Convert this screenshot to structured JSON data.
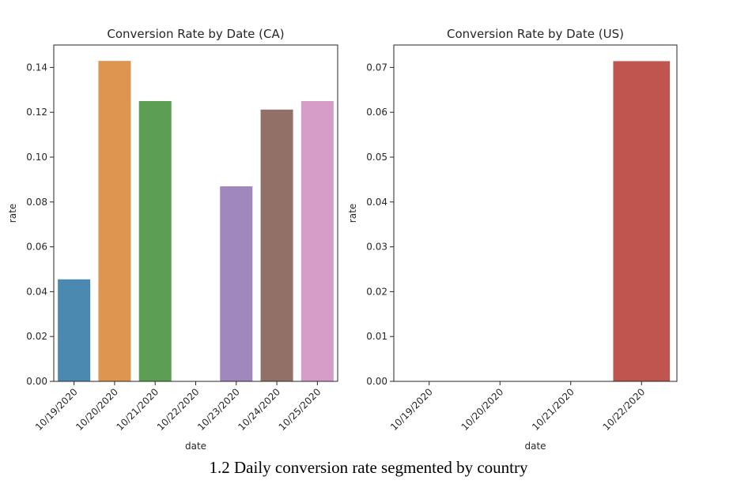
{
  "chart_data": [
    {
      "type": "bar",
      "title": "Conversion Rate by Date (CA)",
      "xlabel": "date",
      "ylabel": "rate",
      "categories": [
        "10/19/2020",
        "10/20/2020",
        "10/21/2020",
        "10/22/2020",
        "10/23/2020",
        "10/24/2020",
        "10/25/2020"
      ],
      "values": [
        0.0455,
        0.1429,
        0.125,
        0.0,
        0.087,
        0.1212,
        0.125
      ],
      "colors": [
        "#4c89b0",
        "#dd9550",
        "#5c9e54",
        "#c44e52",
        "#a087bc",
        "#937067",
        "#d59dc7"
      ],
      "ylim": [
        0,
        0.15
      ],
      "yticks": [
        "0.00",
        "0.02",
        "0.04",
        "0.06",
        "0.08",
        "0.10",
        "0.12",
        "0.14"
      ],
      "grid": false
    },
    {
      "type": "bar",
      "title": "Conversion Rate by Date (US)",
      "xlabel": "date",
      "ylabel": "rate",
      "categories": [
        "10/19/2020",
        "10/20/2020",
        "10/21/2020",
        "10/22/2020"
      ],
      "values": [
        0.0,
        0.0,
        0.0,
        0.0714
      ],
      "colors": [
        "#4c89b0",
        "#dd9550",
        "#5c9e54",
        "#c0554f"
      ],
      "ylim": [
        0,
        0.075
      ],
      "yticks": [
        "0.00",
        "0.01",
        "0.02",
        "0.03",
        "0.04",
        "0.05",
        "0.06",
        "0.07"
      ],
      "grid": false
    }
  ],
  "caption": "1.2 Daily conversion rate segmented by country"
}
